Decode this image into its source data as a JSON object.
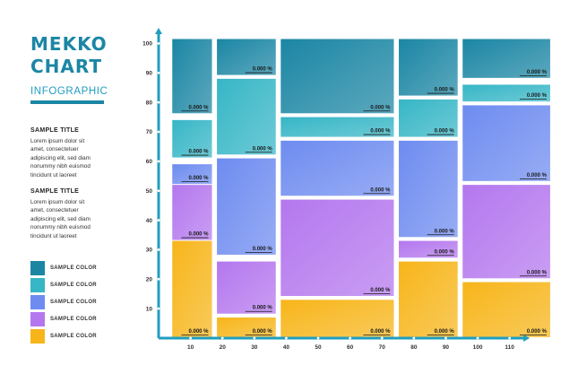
{
  "title": "MEKKO CHART",
  "subtitle": "INFOGRAPHIC",
  "text_blocks": [
    {
      "heading": "SAMPLE TITLE",
      "lines": [
        "Lorem ipsum dolor sit",
        "amet, consectetuer",
        "adipiscing elit, sed diam",
        "nonummy nibh euismod",
        "tincidunt ut laoreet"
      ]
    },
    {
      "heading": "SAMPLE TITLE",
      "lines": [
        "Lorem ipsum dolor sit",
        "amet, consectetuer",
        "adipiscing elit, sed diam",
        "nonummy nibh euismod",
        "tincidunt ut laoreet"
      ]
    }
  ],
  "legend": [
    {
      "label": "SAMPLE COLOR",
      "color": "#1b86a4"
    },
    {
      "label": "SAMPLE COLOR",
      "color": "#36b6c6"
    },
    {
      "label": "SAMPLE COLOR",
      "color": "#6e8cf0"
    },
    {
      "label": "SAMPLE COLOR",
      "color": "#b477ee"
    },
    {
      "label": "SAMPLE COLOR",
      "color": "#f7b51a"
    }
  ],
  "chart_data": {
    "type": "bar",
    "variant": "marimekko",
    "x_ticks": [
      "10",
      "20",
      "30",
      "40",
      "50",
      "60",
      "70",
      "80",
      "90",
      "100",
      "110"
    ],
    "y_ticks": [
      "10",
      "20",
      "30",
      "40",
      "50",
      "60",
      "70",
      "80",
      "90",
      "100"
    ],
    "xlim": [
      0,
      116
    ],
    "ylim": [
      0,
      105
    ],
    "colors": [
      "#1b86a4",
      "#36b6c6",
      "#6e8cf0",
      "#b477ee",
      "#f7b51a"
    ],
    "columns": [
      {
        "x_start": 4,
        "x_end": 17,
        "segments": [
          {
            "color": 4,
            "y0": 0,
            "y1": 33,
            "label": "0.000 %"
          },
          {
            "color": 3,
            "y0": 33,
            "y1": 52,
            "label": "0.000 %"
          },
          {
            "color": 2,
            "y0": 52,
            "y1": 59,
            "label": "0.000 %"
          },
          {
            "color": 1,
            "y0": 61,
            "y1": 74,
            "label": "0.000 %"
          },
          {
            "color": 0,
            "y0": 76,
            "y1": 101.5,
            "label": "0.000 %"
          }
        ]
      },
      {
        "x_start": 18,
        "x_end": 37,
        "segments": [
          {
            "color": 4,
            "y0": 0,
            "y1": 7,
            "label": "0.000 %"
          },
          {
            "color": 3,
            "y0": 8,
            "y1": 26,
            "label": "0.000 %"
          },
          {
            "color": 2,
            "y0": 28,
            "y1": 61,
            "label": "0.000 %"
          },
          {
            "color": 1,
            "y0": 62,
            "y1": 88,
            "label": "0.000 %"
          },
          {
            "color": 0,
            "y0": 89,
            "y1": 101.5,
            "label": "0.000 %"
          }
        ]
      },
      {
        "x_start": 38,
        "x_end": 74,
        "segments": [
          {
            "color": 4,
            "y0": 0,
            "y1": 13,
            "label": "0.000 %"
          },
          {
            "color": 3,
            "y0": 14,
            "y1": 47,
            "label": "0.000 %"
          },
          {
            "color": 2,
            "y0": 48,
            "y1": 67,
            "label": "0.000 %"
          },
          {
            "color": 1,
            "y0": 68,
            "y1": 75,
            "label": "0.000 %"
          },
          {
            "color": 0,
            "y0": 76,
            "y1": 101.5,
            "label": "0.000 %"
          }
        ]
      },
      {
        "x_start": 75,
        "x_end": 94,
        "segments": [
          {
            "color": 4,
            "y0": 0,
            "y1": 26,
            "label": "0.000 %"
          },
          {
            "color": 3,
            "y0": 27,
            "y1": 33,
            "label": "0.000 %"
          },
          {
            "color": 2,
            "y0": 34,
            "y1": 67,
            "label": "0.000 %"
          },
          {
            "color": 1,
            "y0": 68,
            "y1": 81,
            "label": "0.000 %"
          },
          {
            "color": 0,
            "y0": 82,
            "y1": 101.5,
            "label": "0.000 %"
          }
        ]
      },
      {
        "x_start": 95,
        "x_end": 123,
        "segments": [
          {
            "color": 4,
            "y0": 0,
            "y1": 19,
            "label": "0.000 %"
          },
          {
            "color": 3,
            "y0": 20,
            "y1": 52,
            "label": "0.000 %"
          },
          {
            "color": 2,
            "y0": 53,
            "y1": 79,
            "label": "0.000 %"
          },
          {
            "color": 1,
            "y0": 80,
            "y1": 86,
            "label": "0.000 %"
          },
          {
            "color": 0,
            "y0": 88,
            "y1": 101.5,
            "label": "0.000 %"
          }
        ]
      }
    ]
  }
}
